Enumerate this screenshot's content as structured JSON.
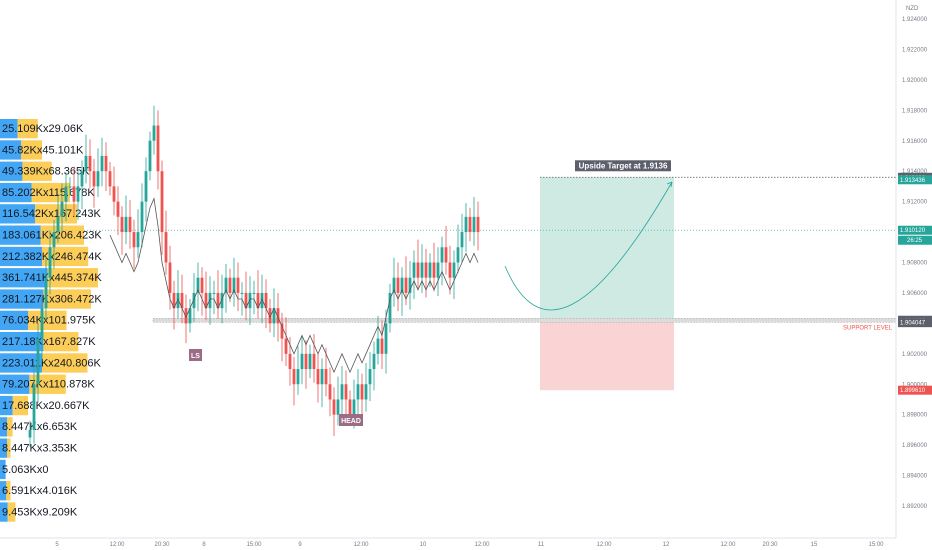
{
  "currency": "NZD",
  "price_axis": {
    "ticks": [
      "1.924000",
      "1.922000",
      "1.920000",
      "1.918000",
      "1.916000",
      "1.914000",
      "1.912000",
      "1.908000",
      "1.906000",
      "1.902000",
      "1.900000",
      "1.898000",
      "1.896000",
      "1.894000",
      "1.892000"
    ],
    "tick_values": [
      1.924,
      1.922,
      1.92,
      1.918,
      1.916,
      1.914,
      1.912,
      1.908,
      1.906,
      1.902,
      1.9,
      1.898,
      1.896,
      1.894,
      1.892
    ],
    "range": [
      1.891,
      1.9255
    ]
  },
  "time_axis": {
    "labels": [
      "5",
      "12:00",
      "20:30",
      "8",
      "15:00",
      "9",
      "12:00",
      "10",
      "12:00",
      "11",
      "12:00",
      "12",
      "12:00",
      "20:30",
      "15",
      "15:00"
    ]
  },
  "price_labels": {
    "target": {
      "text": "1.913600",
      "value": 1.9136,
      "bg": "#5d606b"
    },
    "target2": {
      "text": "1.913436",
      "value": 1.913436,
      "bg": "#26a69a"
    },
    "current": {
      "text": "1.910120",
      "value": 1.91012,
      "bg": "#26a69a"
    },
    "countdown": {
      "text": "26:25",
      "bg": "#26a69a"
    },
    "support_top": {
      "text": "1.904205",
      "value": 1.904205,
      "bg": "#5d606b"
    },
    "support_bottom": {
      "text": "1.904047",
      "value": 1.904047,
      "bg": "#5d606b"
    },
    "stop": {
      "text": "1.899610",
      "value": 1.89961,
      "bg": "#ef5350"
    }
  },
  "annotations": {
    "upside_target": "Upside Target at 1.9136",
    "support_level": "SUPPORT LEVEL",
    "left_shoulder": "LS",
    "head": "HEAD"
  },
  "volume_profile": {
    "rows": [
      {
        "label": "25.109Kx29.06K",
        "buy": 0.25,
        "sell": 0.29
      },
      {
        "label": "45.82Kx45.101K",
        "buy": 0.3,
        "sell": 0.3
      },
      {
        "label": "49.339Kx68.365K",
        "buy": 0.32,
        "sell": 0.42
      },
      {
        "label": "85.202Kx115.678K",
        "buy": 0.45,
        "sell": 0.55
      },
      {
        "label": "116.542Kx167.243K",
        "buy": 0.5,
        "sell": 0.6
      },
      {
        "label": "183.061Kx206.423K",
        "buy": 0.58,
        "sell": 0.62
      },
      {
        "label": "212.382Kx246.474K",
        "buy": 0.6,
        "sell": 0.66
      },
      {
        "label": "361.741Kx445.374K",
        "buy": 0.68,
        "sell": 0.72
      },
      {
        "label": "281.127Kx306.472K",
        "buy": 0.62,
        "sell": 0.68
      },
      {
        "label": "76.034Kx101.975K",
        "buy": 0.4,
        "sell": 0.55
      },
      {
        "label": "217.18Kx167.827K",
        "buy": 0.62,
        "sell": 0.5
      },
      {
        "label": "223.011Kx240.806K",
        "buy": 0.6,
        "sell": 0.65
      },
      {
        "label": "79.207Kx110.878K",
        "buy": 0.42,
        "sell": 0.52
      },
      {
        "label": "17.688Kx20.667K",
        "buy": 0.18,
        "sell": 0.22
      },
      {
        "label": "8.447Kx6.653K",
        "buy": 0.1,
        "sell": 0.08
      },
      {
        "label": "8.447Kx3.353K",
        "buy": 0.1,
        "sell": 0.05
      },
      {
        "label": "5.063Kx0",
        "buy": 0.08,
        "sell": 0.0
      },
      {
        "label": "6.591Kx4.016K",
        "buy": 0.09,
        "sell": 0.06
      },
      {
        "label": "9.453Kx9.209K",
        "buy": 0.11,
        "sell": 0.11
      }
    ]
  },
  "colors": {
    "up": "#26a69a",
    "down": "#ef5350",
    "target_zone": "#cfe9e3",
    "stop_zone": "#fad4d4",
    "profile_buy": "#2196f3",
    "profile_sell": "#fbc02d",
    "ma_line": "#555555"
  },
  "chart_data": {
    "type": "candlestick",
    "symbol_currency": "NZD",
    "key_levels": {
      "target": 1.9136,
      "support_top": 1.904205,
      "support_bottom": 1.904047,
      "stop": 1.89961,
      "last_price": 1.91012
    }
  }
}
